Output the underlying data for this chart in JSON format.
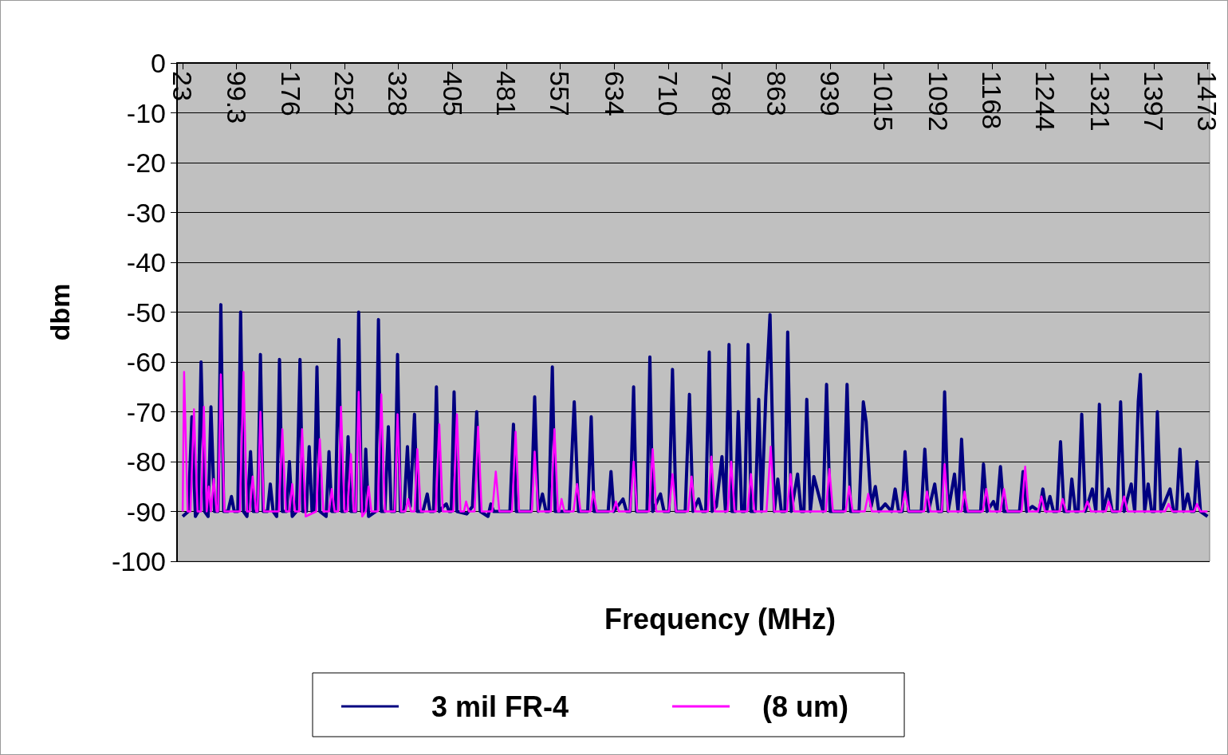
{
  "chart_data": {
    "type": "line",
    "xlabel": "Frequency (MHz)",
    "ylabel": "dbm",
    "xlim": [
      15,
      1476
    ],
    "xticks": [
      23,
      99.3,
      176,
      252,
      328,
      405,
      481,
      557,
      634,
      710,
      786,
      863,
      939,
      1015,
      1092,
      1168,
      1244,
      1321,
      1397,
      1473
    ],
    "ylim": [
      -100,
      0
    ],
    "yticks": [
      -100,
      -90,
      -80,
      -70,
      -60,
      -50,
      -40,
      -30,
      -20,
      -10,
      0
    ],
    "grid": "y",
    "legend": "bottom",
    "series": [
      {
        "name": "3 mil FR-4",
        "color": "#000080",
        "x": [
          23,
          31,
          36,
          41,
          45,
          49,
          54,
          59,
          63,
          68,
          73,
          77,
          81,
          87,
          92,
          96,
          101,
          105,
          109,
          114,
          119,
          123,
          129,
          133,
          137,
          143,
          147,
          151,
          156,
          160,
          164,
          170,
          174,
          178,
          184,
          189,
          193,
          198,
          202,
          206,
          209,
          213,
          217,
          226,
          230,
          234,
          239,
          244,
          248,
          253,
          257,
          261,
          268,
          272,
          276,
          279,
          282,
          286,
          296,
          300,
          304,
          309,
          314,
          318,
          323,
          327,
          331,
          336,
          341,
          345,
          351,
          355,
          363,
          369,
          373,
          378,
          382,
          386,
          392,
          396,
          400,
          403,
          407,
          411,
          425,
          433,
          439,
          444,
          455,
          459,
          463,
          486,
          491,
          495,
          516,
          521,
          526,
          532,
          537,
          541,
          546,
          550,
          570,
          577,
          583,
          596,
          601,
          605,
          625,
          629,
          633,
          646,
          651,
          656,
          661,
          665,
          680,
          684,
          688,
          699,
          704,
          711,
          716,
          721,
          734,
          740,
          745,
          753,
          758,
          763,
          768,
          772,
          778,
          786,
          791,
          796,
          800,
          805,
          809,
          814,
          818,
          823,
          827,
          833,
          838,
          842,
          848,
          854,
          860,
          865,
          870,
          875,
          879,
          884,
          893,
          898,
          902,
          906,
          911,
          916,
          929,
          934,
          939,
          958,
          963,
          968,
          980,
          986,
          990,
          997,
          1003,
          1008,
          1017,
          1026,
          1031,
          1036,
          1041,
          1045,
          1050,
          1068,
          1073,
          1078,
          1087,
          1092,
          1097,
          1101,
          1106,
          1115,
          1120,
          1125,
          1130,
          1152,
          1156,
          1161,
          1170,
          1175,
          1180,
          1185,
          1207,
          1212,
          1217,
          1225,
          1235,
          1240,
          1245,
          1250,
          1255,
          1260,
          1265,
          1270,
          1277,
          1281,
          1286,
          1290,
          1295,
          1300,
          1310,
          1315,
          1320,
          1325,
          1333,
          1338,
          1345,
          1350,
          1355,
          1365,
          1370,
          1375,
          1378,
          1384,
          1389,
          1394,
          1398,
          1402,
          1407,
          1420,
          1425,
          1429,
          1434,
          1439,
          1445,
          1450,
          1454,
          1458,
          1463,
          1473
        ],
        "values": [
          -91,
          -90,
          -71,
          -91,
          -90,
          -60,
          -90,
          -91,
          -69,
          -90,
          -90,
          -48.5,
          -90,
          -90,
          -87,
          -90,
          -90,
          -50,
          -90,
          -91,
          -78,
          -90,
          -90,
          -58.5,
          -90,
          -90,
          -84.5,
          -90,
          -91,
          -59.5,
          -90,
          -90,
          -80,
          -91,
          -90,
          -59.5,
          -90,
          -90,
          -77,
          -90,
          -90,
          -61,
          -90,
          -91,
          -78,
          -90,
          -90,
          -55.5,
          -90,
          -90,
          -75,
          -90,
          -90,
          -50,
          -90,
          -90,
          -77.5,
          -91,
          -90,
          -51.5,
          -90,
          -90,
          -73,
          -90,
          -90,
          -58.5,
          -90,
          -90,
          -77,
          -89,
          -70.5,
          -90,
          -90,
          -86.5,
          -90,
          -90,
          -65,
          -90,
          -89,
          -88.5,
          -90,
          -90,
          -66,
          -90,
          -90.5,
          -89,
          -70,
          -90,
          -91,
          -88.5,
          -90,
          -90,
          -72.5,
          -90,
          -90,
          -67,
          -90,
          -86.5,
          -90,
          -90,
          -61,
          -90,
          -90,
          -68,
          -90,
          -90,
          -71,
          -90,
          -90,
          -82,
          -90,
          -87.5,
          -90,
          -90,
          -65,
          -90,
          -90,
          -59,
          -90,
          -86.5,
          -90,
          -90,
          -61.5,
          -90,
          -90,
          -66.5,
          -90,
          -87.5,
          -90,
          -90,
          -58,
          -90,
          -89,
          -79,
          -90,
          -56.5,
          -90,
          -90,
          -70,
          -90,
          -90,
          -56.5,
          -90,
          -90,
          -67.5,
          -90,
          -67,
          -50.5,
          -90,
          -83.5,
          -90,
          -90,
          -54,
          -90,
          -82.5,
          -90,
          -90,
          -67.5,
          -90,
          -83,
          -90,
          -64.5,
          -90,
          -90,
          -64.5,
          -90,
          -90,
          -68,
          -72,
          -89,
          -85,
          -90,
          -88.5,
          -90,
          -85.5,
          -90,
          -90,
          -78,
          -90,
          -90,
          -77.5,
          -90,
          -84.5,
          -90,
          -90,
          -66,
          -90,
          -82.5,
          -90,
          -75.5,
          -90,
          -90,
          -80.5,
          -90,
          -88,
          -90,
          -81,
          -90,
          -90,
          -82,
          -90,
          -89,
          -90,
          -85.5,
          -90,
          -87,
          -90,
          -90,
          -76,
          -90,
          -90,
          -83.5,
          -90,
          -90,
          -70.5,
          -90,
          -85.5,
          -90,
          -68.5,
          -90,
          -85.5,
          -90,
          -90,
          -68,
          -90,
          -84.5,
          -90,
          -68,
          -62.5,
          -90,
          -84.5,
          -90,
          -90,
          -70,
          -90,
          -85.5,
          -90,
          -90,
          -77.5,
          -90,
          -86.5,
          -90,
          -90,
          -80,
          -90,
          -91
        ]
      },
      {
        "name": "(8 um)",
        "color": "#ff00ff",
        "x": [
          23,
          25,
          30,
          34,
          39,
          44,
          49,
          53,
          57,
          60,
          63,
          67,
          71,
          73,
          77,
          82,
          104,
          109,
          114,
          118,
          122,
          127,
          129,
          133,
          138,
          159,
          164,
          169,
          174,
          178,
          182,
          188,
          192,
          197,
          212,
          217,
          222,
          230,
          234,
          238,
          243,
          247,
          252,
          256,
          261,
          265,
          268,
          272,
          277,
          282,
          286,
          290,
          299,
          304,
          309,
          323,
          327,
          332,
          338,
          342,
          346,
          351,
          355,
          360,
          381,
          386,
          391,
          406,
          411,
          416,
          421,
          424,
          428,
          436,
          441,
          446,
          461,
          466,
          471,
          489,
          494,
          499,
          517,
          521,
          526,
          544,
          549,
          554,
          556,
          559,
          563,
          576,
          581,
          586,
          600,
          604,
          609,
          632,
          636,
          640,
          656,
          661,
          666,
          683,
          688,
          693,
          711,
          716,
          721,
          738,
          743,
          748,
          766,
          771,
          776,
          794,
          799,
          804,
          822,
          827,
          832,
          849,
          855,
          860,
          878,
          883,
          888,
          933,
          938,
          943,
          961,
          966,
          971,
          988,
          993,
          998,
          1040,
          1045,
          1050,
          1072,
          1076,
          1081,
          1097,
          1101,
          1106,
          1125,
          1129,
          1134,
          1155,
          1160,
          1165,
          1180,
          1185,
          1190,
          1210,
          1215,
          1220,
          1233,
          1238,
          1243,
          1264,
          1268,
          1273,
          1298,
          1303,
          1308,
          1329,
          1333,
          1338,
          1350,
          1355,
          1360,
          1413,
          1418,
          1423,
          1454,
          1458,
          1463,
          1473
        ],
        "values": [
          -90,
          -62,
          -90,
          -90,
          -69.5,
          -90,
          -90,
          -69,
          -90,
          -85,
          -90,
          -83.5,
          -90,
          -90,
          -62.5,
          -90,
          -90,
          -62,
          -90,
          -90,
          -83,
          -90,
          -90,
          -70,
          -90,
          -90,
          -73.5,
          -90,
          -90,
          -84.5,
          -90,
          -90,
          -73.5,
          -91,
          -90,
          -75.5,
          -90,
          -90,
          -85.5,
          -90,
          -90,
          -69,
          -90,
          -90,
          -78.5,
          -90,
          -90,
          -66,
          -91,
          -90,
          -85,
          -90,
          -90,
          -66.5,
          -90,
          -90,
          -70.5,
          -90,
          -90,
          -87.5,
          -90,
          -90,
          -77.5,
          -90,
          -90,
          -72.5,
          -90,
          -90,
          -70.5,
          -90,
          -90,
          -88,
          -90,
          -90,
          -73,
          -90,
          -90,
          -82,
          -90,
          -90,
          -74,
          -90,
          -90,
          -78,
          -90,
          -90,
          -73.5,
          -90,
          -90,
          -87.5,
          -90,
          -90,
          -84.5,
          -90,
          -90,
          -86,
          -90,
          -90,
          -88,
          -90,
          -90,
          -80,
          -90,
          -90,
          -77.5,
          -90,
          -90,
          -82.5,
          -90,
          -90,
          -83,
          -90,
          -90,
          -79,
          -90,
          -90,
          -80,
          -90,
          -90,
          -82.5,
          -90,
          -90,
          -77,
          -90,
          -90,
          -82.5,
          -90,
          -90,
          -81.5,
          -90,
          -90,
          -85,
          -90,
          -90,
          -86.5,
          -90,
          -90,
          -86,
          -90,
          -90,
          -86,
          -90,
          -90,
          -80.5,
          -90,
          -90,
          -86,
          -90,
          -90,
          -85.5,
          -90,
          -90,
          -85.5,
          -90,
          -90,
          -81,
          -90,
          -90,
          -87,
          -90,
          -90,
          -87.5,
          -90,
          -90,
          -88,
          -90,
          -90,
          -88,
          -90,
          -90,
          -87,
          -90,
          -90,
          -88.5,
          -90,
          -90,
          -88.5,
          -90,
          -90
        ]
      }
    ]
  }
}
